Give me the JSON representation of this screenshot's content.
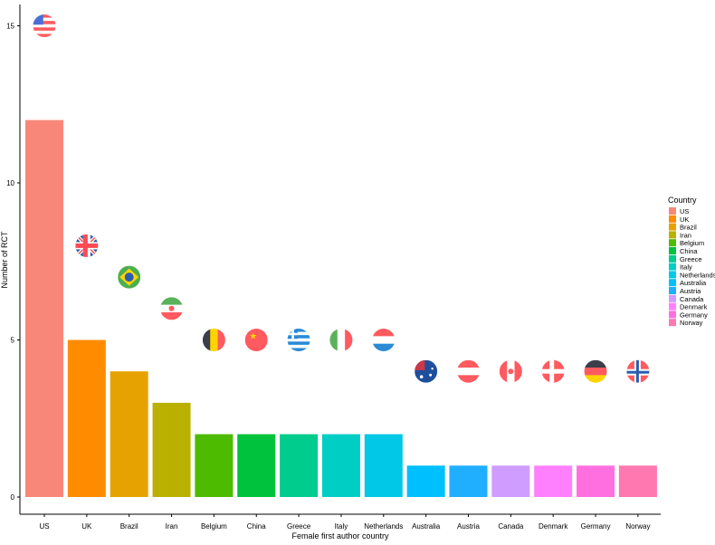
{
  "chart_data": {
    "type": "bar",
    "title": "",
    "xlabel": "Female first author country",
    "ylabel": "Number of RCT",
    "ylim": [
      0,
      15.6
    ],
    "yticks": [
      0,
      5,
      10,
      15
    ],
    "grid": false,
    "legend_title": "Country",
    "legend_position": "right",
    "categories": [
      "US",
      "UK",
      "Brazil",
      "Iran",
      "Belgium",
      "China",
      "Greece",
      "Italy",
      "Netherlands",
      "Australia",
      "Austria",
      "Canada",
      "Denmark",
      "Germany",
      "Norway"
    ],
    "values": [
      12,
      5,
      4,
      3,
      2,
      2,
      2,
      2,
      2,
      1,
      1,
      1,
      1,
      1,
      1
    ],
    "colors": [
      "#F8877A",
      "#FF8C00",
      "#E6A200",
      "#BAB000",
      "#4DBB00",
      "#00C23C",
      "#00CC8E",
      "#00CEC4",
      "#00C8E6",
      "#00BFFF",
      "#20AEFF",
      "#CF9CFF",
      "#FF80FF",
      "#FF6FE0",
      "#FF78B0"
    ],
    "flag_icons": [
      "us-flag-icon",
      "uk-flag-icon",
      "brazil-flag-icon",
      "iran-flag-icon",
      "belgium-flag-icon",
      "china-flag-icon",
      "greece-flag-icon",
      "italy-flag-icon",
      "netherlands-flag-icon",
      "australia-flag-icon",
      "austria-flag-icon",
      "canada-flag-icon",
      "denmark-flag-icon",
      "germany-flag-icon",
      "norway-flag-icon"
    ],
    "flag_offset": 3
  }
}
